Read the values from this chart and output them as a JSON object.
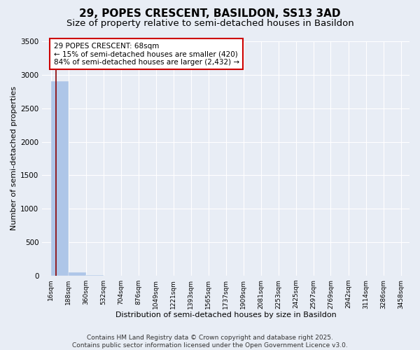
{
  "title": "29, POPES CRESCENT, BASILDON, SS13 3AD",
  "subtitle": "Size of property relative to semi-detached houses in Basildon",
  "xlabel": "Distribution of semi-detached houses by size in Basildon",
  "ylabel": "Number of semi-detached properties",
  "footnote": "Contains HM Land Registry data © Crown copyright and database right 2025.\nContains public sector information licensed under the Open Government Licence v3.0.",
  "property_size": 68,
  "annotation_text": "29 POPES CRESCENT: 68sqm\n← 15% of semi-detached houses are smaller (420)\n84% of semi-detached houses are larger (2,432) →",
  "bin_edges": [
    16,
    188,
    360,
    532,
    704,
    876,
    1049,
    1221,
    1393,
    1565,
    1737,
    1909,
    2081,
    2253,
    2425,
    2597,
    2769,
    2942,
    3114,
    3286,
    3458
  ],
  "bin_labels": [
    "16sqm",
    "188sqm",
    "360sqm",
    "532sqm",
    "704sqm",
    "876sqm",
    "1049sqm",
    "1221sqm",
    "1393sqm",
    "1565sqm",
    "1737sqm",
    "1909sqm",
    "2081sqm",
    "2253sqm",
    "2425sqm",
    "2597sqm",
    "2769sqm",
    "2942sqm",
    "3114sqm",
    "3286sqm",
    "3458sqm"
  ],
  "bar_heights": [
    2900,
    50,
    5,
    2,
    1,
    0,
    0,
    0,
    0,
    0,
    0,
    0,
    0,
    0,
    0,
    0,
    0,
    0,
    0,
    0
  ],
  "bar_color": "#aec6e8",
  "line_color": "#8b0000",
  "annotation_box_color": "#ffffff",
  "annotation_box_edge": "#cc0000",
  "bg_color": "#e8edf5",
  "grid_color": "#ffffff",
  "ylim": [
    0,
    3500
  ],
  "title_fontsize": 11,
  "subtitle_fontsize": 9.5,
  "axis_label_fontsize": 8,
  "tick_fontsize": 6.5,
  "annotation_fontsize": 7.5,
  "footnote_fontsize": 6.5
}
